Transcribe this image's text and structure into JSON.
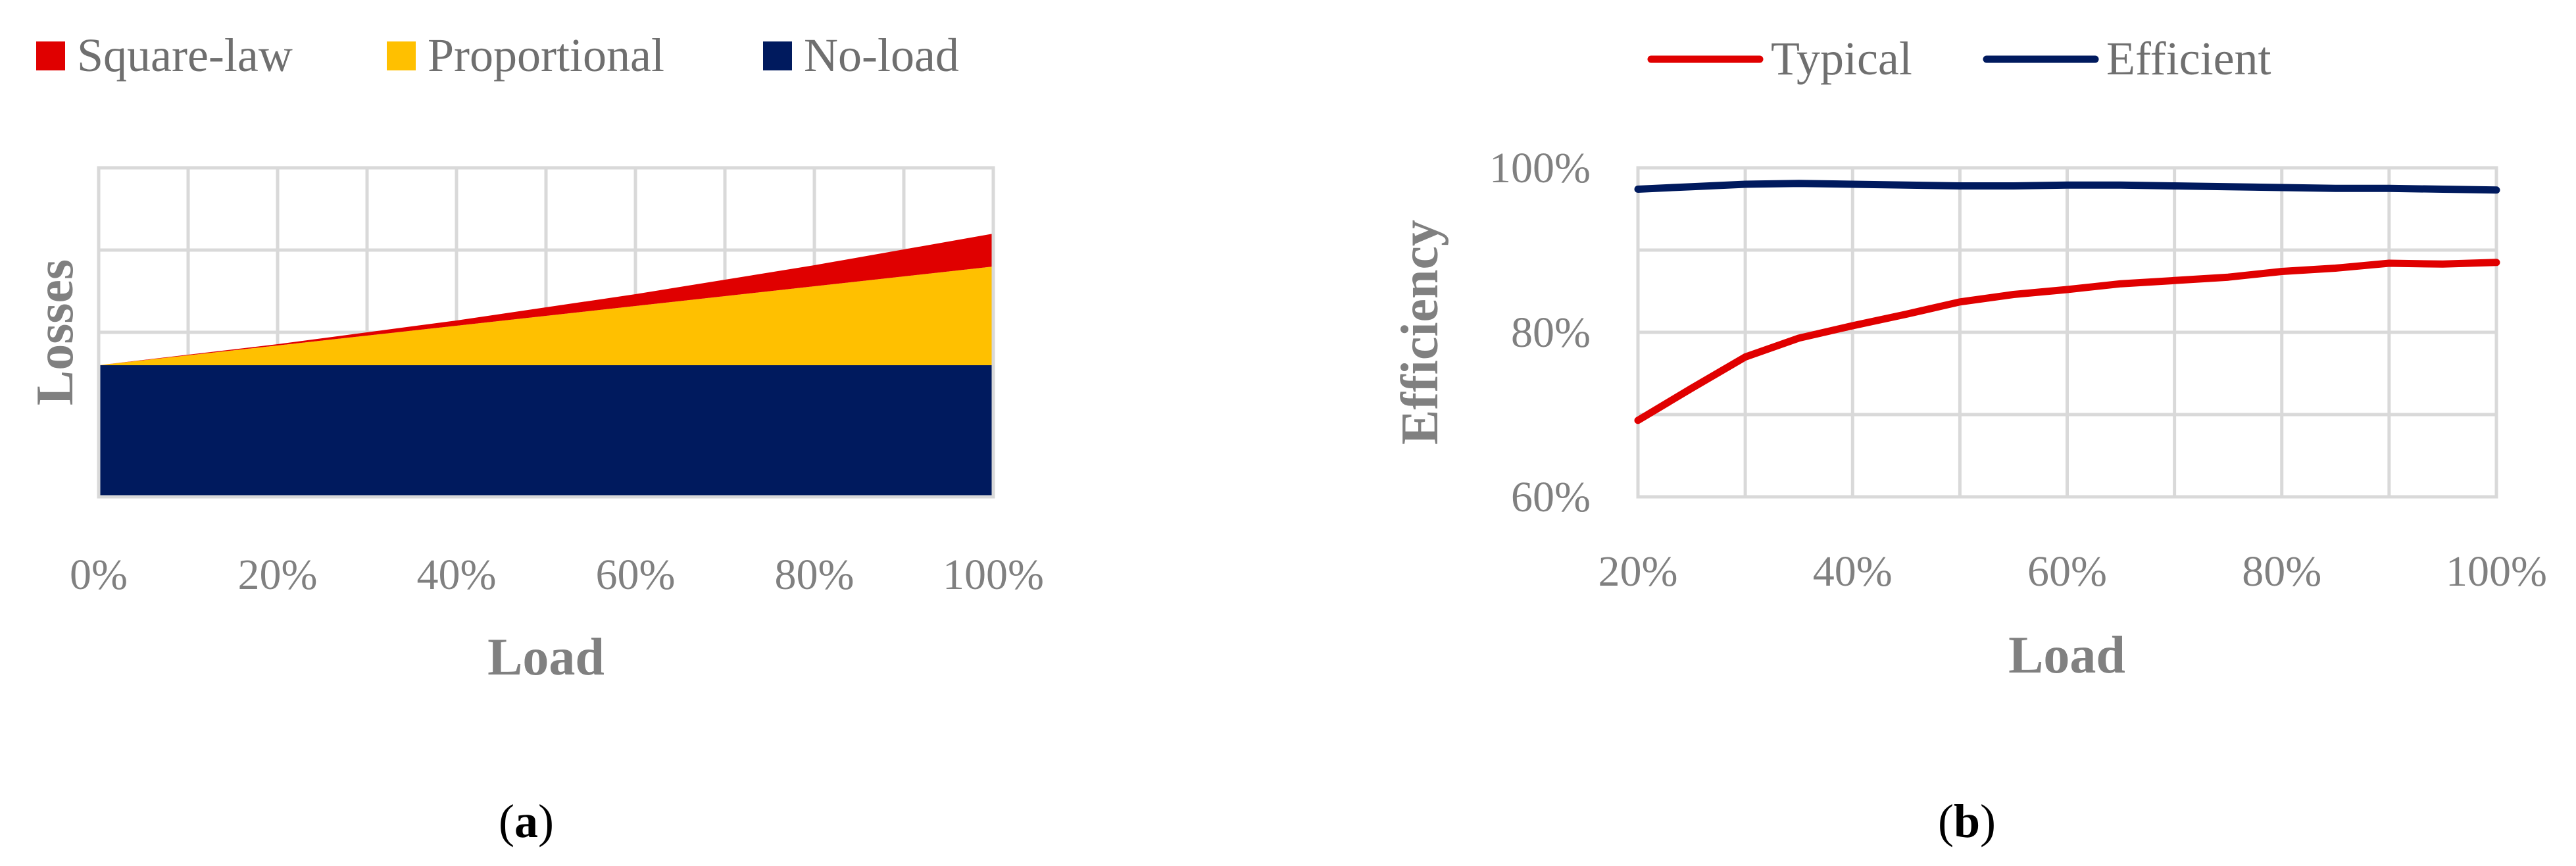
{
  "chart_data": [
    {
      "type": "area",
      "panel": "a",
      "caption": {
        "open": "(",
        "letter": "a",
        "close": ")"
      },
      "stacked": true,
      "xlabel": "Load",
      "ylabel": "Losses",
      "x": [
        0,
        20,
        40,
        60,
        80,
        100
      ],
      "x_tick_labels": [
        "0%",
        "20%",
        "40%",
        "60%",
        "80%",
        "100%"
      ],
      "xlim": [
        0,
        100
      ],
      "ylim": [
        0,
        2
      ],
      "y_gridlines": [
        0,
        0.5,
        1,
        1.5,
        2
      ],
      "y_tick_labels_shown": false,
      "grid": true,
      "legend_position": "top",
      "series": [
        {
          "name": "No-load",
          "color": "#001A5E",
          "values": [
            0.8,
            0.8,
            0.8,
            0.8,
            0.8,
            0.8
          ]
        },
        {
          "name": "Proportional",
          "color": "#FFC000",
          "values": [
            0,
            0.12,
            0.24,
            0.36,
            0.48,
            0.6
          ]
        },
        {
          "name": "Square-law",
          "color": "#E00000",
          "values": [
            0,
            0.008,
            0.032,
            0.072,
            0.128,
            0.2
          ]
        }
      ],
      "legend_order": [
        "Square-law",
        "Proportional",
        "No-load"
      ]
    },
    {
      "type": "line",
      "panel": "b",
      "caption": {
        "open": "(",
        "letter": "b",
        "close": ")"
      },
      "xlabel": "Load",
      "ylabel": "Efficiency",
      "x": [
        20,
        25,
        30,
        35,
        40,
        45,
        50,
        55,
        60,
        65,
        70,
        75,
        80,
        85,
        90,
        95,
        100
      ],
      "x_ticks": [
        20,
        40,
        60,
        80,
        100
      ],
      "x_tick_labels": [
        "20%",
        "40%",
        "60%",
        "80%",
        "100%"
      ],
      "xlim": [
        20,
        100
      ],
      "ylim": [
        60,
        100
      ],
      "y_gridlines": [
        60,
        70,
        80,
        90,
        100
      ],
      "y_ticks": [
        60,
        80,
        100
      ],
      "y_tick_labels": [
        "60%",
        "80%",
        "100%"
      ],
      "grid": true,
      "legend_position": "top",
      "series": [
        {
          "name": "Typical",
          "color": "#E00000",
          "values": [
            69.3,
            73.2,
            77.0,
            79.3,
            80.8,
            82.2,
            83.7,
            84.6,
            85.2,
            85.9,
            86.3,
            86.7,
            87.4,
            87.8,
            88.4,
            88.3,
            88.5
          ]
        },
        {
          "name": "Efficient",
          "color": "#001A5E",
          "values": [
            97.4,
            97.7,
            98.0,
            98.1,
            98.0,
            97.9,
            97.8,
            97.8,
            97.9,
            97.9,
            97.8,
            97.7,
            97.6,
            97.5,
            97.5,
            97.4,
            97.3
          ]
        }
      ]
    }
  ]
}
